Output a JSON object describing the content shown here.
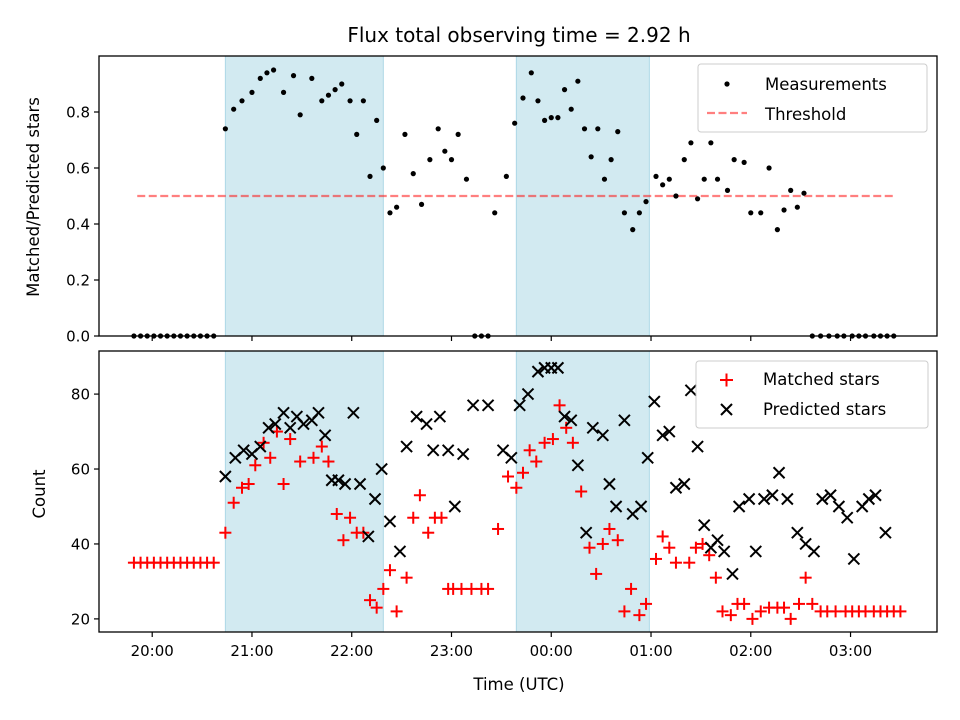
{
  "title": "Flux total observing time = 2.92 h",
  "colors": {
    "measurement": "#000000",
    "threshold": "#ff0000",
    "matched": "#ff0000",
    "predicted": "#000000",
    "shading": "#add8e6"
  },
  "chart_data": [
    {
      "type": "scatter",
      "ylabel": "Matched/Predicted stars",
      "xlabel": "",
      "ylim": [
        0,
        1
      ],
      "yticks": [
        "0.0",
        "0.2",
        "0.4",
        "0.6",
        "0.8"
      ],
      "xlim_minutes": [
        1168,
        1672
      ],
      "legend": {
        "placement": "top-right",
        "entries": [
          "Measurements",
          "Threshold"
        ]
      },
      "threshold": {
        "name": "Threshold",
        "value": 0.5,
        "x_from_minutes": 1191,
        "x_to_minutes": 1646
      },
      "shaded_intervals": [
        [
          "20:44",
          "22:19"
        ],
        [
          "23:39",
          "00:59"
        ]
      ],
      "series": [
        {
          "name": "Measurements",
          "x": [
            "19:49",
            "19:53",
            "19:57",
            "20:01",
            "20:05",
            "20:09",
            "20:13",
            "20:17",
            "20:21",
            "20:25",
            "20:29",
            "20:33",
            "20:37",
            "20:44",
            "20:49",
            "20:54",
            "21:00",
            "21:05",
            "21:09",
            "21:13",
            "21:19",
            "21:25",
            "21:29",
            "21:36",
            "21:42",
            "21:46",
            "21:50",
            "21:54",
            "21:59",
            "22:03",
            "22:07",
            "22:11",
            "22:15",
            "22:19",
            "22:23",
            "22:27",
            "22:32",
            "22:37",
            "22:42",
            "22:47",
            "22:52",
            "22:56",
            "23:00",
            "23:04",
            "23:09",
            "23:14",
            "23:18",
            "23:22",
            "23:26",
            "23:33",
            "23:38",
            "23:43",
            "23:48",
            "23:52",
            "23:56",
            "24:00",
            "24:04",
            "24:08",
            "24:12",
            "24:16",
            "24:20",
            "24:24",
            "24:28",
            "24:32",
            "24:36",
            "24:40",
            "24:44",
            "24:49",
            "24:53",
            "24:57",
            "25:03",
            "25:07",
            "25:11",
            "25:15",
            "25:20",
            "25:24",
            "25:28",
            "25:32",
            "25:36",
            "25:40",
            "25:46",
            "25:50",
            "25:56",
            "26:00",
            "26:06",
            "26:11",
            "26:16",
            "26:20",
            "26:24",
            "26:28",
            "26:32",
            "26:37",
            "26:42",
            "26:47",
            "26:52",
            "26:56",
            "27:01",
            "27:05",
            "27:09",
            "27:14",
            "27:18",
            "27:22",
            "27:26"
          ],
          "y": [
            0,
            0,
            0,
            0,
            0,
            0,
            0,
            0,
            0,
            0,
            0,
            0,
            0,
            0.74,
            0.81,
            0.84,
            0.87,
            0.92,
            0.94,
            0.95,
            0.87,
            0.93,
            0.79,
            0.92,
            0.84,
            0.86,
            0.88,
            0.9,
            0.84,
            0.72,
            0.84,
            0.57,
            0.77,
            0.6,
            0.44,
            0.46,
            0.72,
            0.58,
            0.47,
            0.63,
            0.74,
            0.66,
            0.63,
            0.72,
            0.56,
            0,
            0,
            0,
            0.44,
            0.57,
            0.76,
            0.85,
            0.94,
            0.84,
            0.77,
            0.78,
            0.78,
            0.88,
            0.81,
            0.91,
            0.74,
            0.64,
            0.74,
            0.56,
            0.63,
            0.73,
            0.44,
            0.38,
            0.44,
            0.48,
            0.57,
            0.54,
            0.56,
            0.5,
            0.63,
            0.69,
            0.49,
            0.56,
            0.69,
            0.56,
            0.52,
            0.63,
            0.62,
            0.44,
            0.44,
            0.6,
            0.38,
            0.45,
            0.52,
            0.46,
            0.51,
            0,
            0,
            0,
            0,
            0,
            0,
            0,
            0,
            0,
            0,
            0,
            0
          ]
        }
      ]
    },
    {
      "type": "scatter",
      "ylabel": "Count",
      "xlabel": "Time (UTC)",
      "ylim": [
        16.5,
        91.5
      ],
      "yticks": [
        "20",
        "40",
        "60",
        "80"
      ],
      "xticks": [
        "20:00",
        "21:00",
        "22:00",
        "23:00",
        "00:00",
        "01:00",
        "02:00",
        "03:00"
      ],
      "xlim_minutes": [
        1168,
        1672
      ],
      "legend": {
        "placement": "top-right",
        "entries": [
          "Matched stars",
          "Predicted stars"
        ]
      },
      "shaded_intervals": [
        [
          "20:44",
          "22:19"
        ],
        [
          "23:39",
          "00:59"
        ]
      ],
      "series": [
        {
          "name": "Matched stars",
          "marker": "plus",
          "x": [
            "19:49",
            "19:53",
            "19:57",
            "20:01",
            "20:05",
            "20:09",
            "20:13",
            "20:17",
            "20:21",
            "20:25",
            "20:29",
            "20:33",
            "20:37",
            "20:44",
            "20:49",
            "20:54",
            "20:58",
            "21:02",
            "21:07",
            "21:11",
            "21:15",
            "21:19",
            "21:23",
            "21:29",
            "21:37",
            "21:42",
            "21:46",
            "21:51",
            "21:55",
            "21:59",
            "22:03",
            "22:07",
            "22:11",
            "22:15",
            "22:19",
            "22:23",
            "22:27",
            "22:33",
            "22:37",
            "22:41",
            "22:46",
            "22:50",
            "22:54",
            "22:58",
            "23:01",
            "23:06",
            "23:12",
            "23:18",
            "23:22",
            "23:28",
            "23:34",
            "23:39",
            "23:43",
            "23:47",
            "23:51",
            "23:56",
            "24:01",
            "24:05",
            "24:09",
            "24:13",
            "24:18",
            "24:23",
            "24:27",
            "24:31",
            "24:35",
            "24:40",
            "24:44",
            "24:48",
            "24:53",
            "24:57",
            "25:03",
            "25:07",
            "25:11",
            "25:15",
            "25:23",
            "25:27",
            "25:31",
            "25:35",
            "25:39",
            "25:43",
            "25:48",
            "25:52",
            "25:56",
            "26:01",
            "26:06",
            "26:11",
            "26:16",
            "26:20",
            "26:24",
            "26:29",
            "26:33",
            "26:37",
            "26:42",
            "26:46",
            "26:51",
            "26:57",
            "27:01",
            "27:05",
            "27:09",
            "27:14",
            "27:18",
            "27:22",
            "27:26",
            "27:30"
          ],
          "y": [
            35,
            35,
            35,
            35,
            35,
            35,
            35,
            35,
            35,
            35,
            35,
            35,
            35,
            43,
            51,
            55,
            56,
            61,
            67,
            63,
            70,
            56,
            68,
            62,
            63,
            66,
            62,
            48,
            41,
            47,
            43,
            43,
            25,
            23,
            28,
            33,
            22,
            31,
            47,
            53,
            43,
            47,
            47,
            28,
            28,
            28,
            28,
            28,
            28,
            44,
            58,
            55,
            59,
            65,
            62,
            67,
            68,
            77,
            71,
            67,
            54,
            39,
            32,
            40,
            44,
            41,
            22,
            28,
            21,
            24,
            36,
            42,
            39,
            35,
            35,
            39,
            40,
            37,
            31,
            22,
            21,
            24,
            24,
            20,
            22,
            23,
            23,
            23,
            20,
            24,
            31,
            24,
            22,
            22,
            22,
            22,
            22,
            22,
            22,
            22,
            22,
            22,
            22,
            22
          ]
        },
        {
          "name": "Predicted stars",
          "marker": "x",
          "x": [
            "20:44",
            "20:50",
            "20:55",
            "21:00",
            "21:05",
            "21:10",
            "21:14",
            "21:19",
            "21:23",
            "21:27",
            "21:31",
            "21:36",
            "21:40",
            "21:44",
            "21:48",
            "21:52",
            "21:56",
            "22:01",
            "22:05",
            "22:10",
            "22:14",
            "22:18",
            "22:23",
            "22:29",
            "22:33",
            "22:39",
            "22:45",
            "22:49",
            "22:53",
            "22:58",
            "23:02",
            "23:07",
            "23:13",
            "23:22",
            "23:31",
            "23:36",
            "23:41",
            "23:46",
            "23:52",
            "23:56",
            "24:00",
            "24:04",
            "24:08",
            "24:12",
            "24:16",
            "24:21",
            "24:25",
            "24:31",
            "24:35",
            "24:39",
            "24:44",
            "24:49",
            "24:54",
            "24:58",
            "25:02",
            "25:07",
            "25:11",
            "25:15",
            "25:20",
            "25:24",
            "25:28",
            "25:32",
            "25:36",
            "25:40",
            "25:44",
            "25:49",
            "25:53",
            "25:59",
            "26:03",
            "26:08",
            "26:13",
            "26:17",
            "26:22",
            "26:28",
            "26:33",
            "26:38",
            "26:43",
            "26:48",
            "26:53",
            "26:58",
            "27:02",
            "27:07",
            "27:11",
            "27:15",
            "27:21"
          ],
          "y": [
            58,
            63,
            65,
            64,
            66,
            71,
            72,
            75,
            71,
            74,
            72,
            73,
            75,
            69,
            57,
            57,
            56,
            75,
            56,
            42,
            52,
            60,
            46,
            38,
            66,
            74,
            72,
            65,
            74,
            65,
            50,
            64,
            77,
            77,
            65,
            63,
            77,
            80,
            86,
            87,
            87,
            87,
            74,
            73,
            61,
            43,
            71,
            69,
            56,
            50,
            73,
            48,
            50,
            63,
            78,
            69,
            70,
            55,
            56,
            81,
            66,
            45,
            39,
            41,
            38,
            32,
            50,
            52,
            38,
            52,
            53,
            59,
            52,
            43,
            40,
            38,
            52,
            53,
            50,
            47,
            36,
            50,
            52,
            53,
            43
          ]
        }
      ]
    }
  ]
}
